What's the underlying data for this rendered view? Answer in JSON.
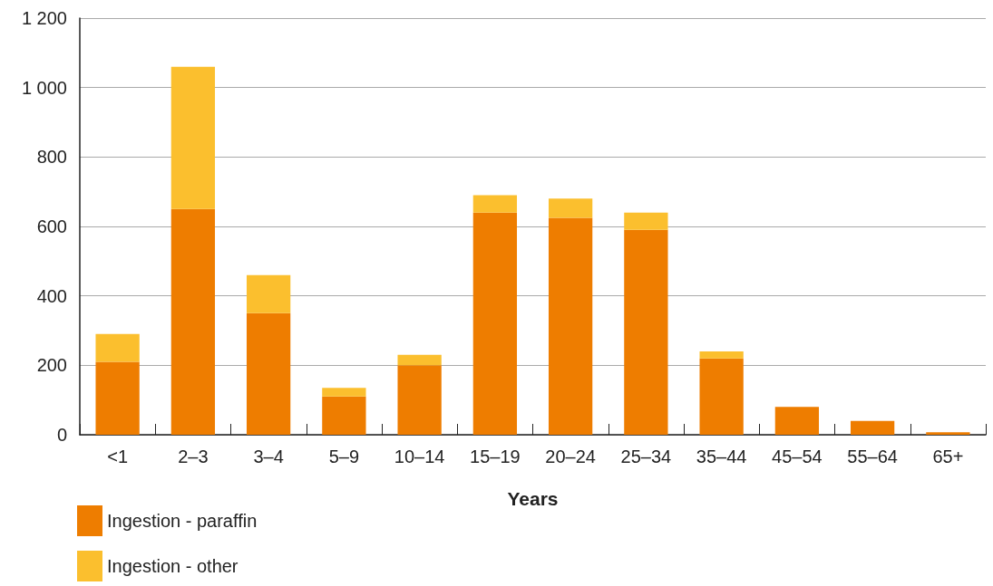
{
  "chart_data": {
    "type": "bar",
    "xlabel": "Years",
    "stacked": true,
    "categories": [
      "<1",
      "2–3",
      "3–4",
      "5–9",
      "10–14",
      "15–19",
      "20–24",
      "25–34",
      "35–44",
      "45–54",
      "55–64",
      "65+"
    ],
    "series": [
      {
        "name": "Ingestion - paraffin",
        "color": "#ee7d00",
        "values": [
          210,
          650,
          350,
          110,
          200,
          640,
          625,
          590,
          220,
          80,
          40,
          7
        ]
      },
      {
        "name": "Ingestion - other",
        "color": "#fbbf2e",
        "values": [
          80,
          410,
          110,
          25,
          30,
          50,
          55,
          50,
          20,
          0,
          0,
          0
        ]
      }
    ],
    "ylim": [
      0,
      1200
    ],
    "yticks": [
      0,
      200,
      400,
      600,
      800,
      {
        "value": 1000,
        "label": "1 000"
      },
      {
        "value": 1200,
        "label": "1 200"
      }
    ],
    "grid": "y",
    "legend": "bottom left"
  }
}
